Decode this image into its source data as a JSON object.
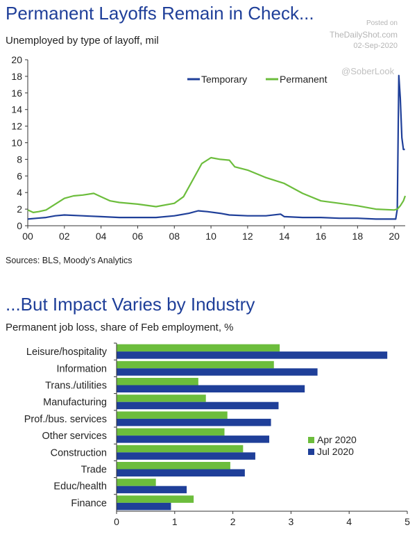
{
  "chart_data": [
    {
      "type": "line",
      "title": "Permanent Layoffs Remain in Check...",
      "subtitle": "Unemployed by type of layoff, mil",
      "source": "Sources: BLS, Moody’s Analytics",
      "watermark": {
        "posted": "Posted on",
        "site": "TheDailyShot.com",
        "date": "02-Sep-2020",
        "handle": "@SoberLook"
      },
      "y_ticks": [
        "0",
        "2",
        "4",
        "6",
        "8",
        "10",
        "12",
        "14",
        "16",
        "18",
        "20"
      ],
      "x_ticks": [
        "00",
        "02",
        "04",
        "06",
        "08",
        "10",
        "12",
        "14",
        "16",
        "18",
        "20"
      ],
      "ylim": [
        0,
        20
      ],
      "xlim": [
        2000,
        2020.6
      ],
      "grid": false,
      "legend_position": "top-right",
      "series": [
        {
          "name": "Temporary",
          "color": "#1f3f99",
          "points": [
            [
              2000,
              0.8
            ],
            [
              2000.5,
              0.9
            ],
            [
              2001,
              1.0
            ],
            [
              2001.5,
              1.2
            ],
            [
              2002,
              1.3
            ],
            [
              2003,
              1.2
            ],
            [
              2004,
              1.1
            ],
            [
              2005,
              1.0
            ],
            [
              2006,
              1.0
            ],
            [
              2007,
              1.0
            ],
            [
              2008,
              1.2
            ],
            [
              2008.8,
              1.5
            ],
            [
              2009.3,
              1.8
            ],
            [
              2009.8,
              1.7
            ],
            [
              2010.5,
              1.5
            ],
            [
              2011,
              1.3
            ],
            [
              2012,
              1.2
            ],
            [
              2013,
              1.2
            ],
            [
              2013.8,
              1.4
            ],
            [
              2014,
              1.1
            ],
            [
              2015,
              1.0
            ],
            [
              2016,
              1.0
            ],
            [
              2017,
              0.9
            ],
            [
              2018,
              0.9
            ],
            [
              2019,
              0.8
            ],
            [
              2019.9,
              0.8
            ],
            [
              2020.08,
              0.8
            ],
            [
              2020.17,
              2.0
            ],
            [
              2020.25,
              18.1
            ],
            [
              2020.33,
              15.4
            ],
            [
              2020.42,
              10.6
            ],
            [
              2020.5,
              9.2
            ],
            [
              2020.58,
              9.2
            ]
          ]
        },
        {
          "name": "Permanent",
          "color": "#6cbd3c",
          "points": [
            [
              2000,
              1.9
            ],
            [
              2000.3,
              1.6
            ],
            [
              2000.6,
              1.7
            ],
            [
              2001,
              1.9
            ],
            [
              2001.5,
              2.6
            ],
            [
              2002,
              3.3
            ],
            [
              2002.5,
              3.6
            ],
            [
              2003,
              3.7
            ],
            [
              2003.6,
              3.9
            ],
            [
              2004,
              3.5
            ],
            [
              2004.5,
              3.0
            ],
            [
              2005,
              2.8
            ],
            [
              2006,
              2.6
            ],
            [
              2007,
              2.3
            ],
            [
              2008,
              2.7
            ],
            [
              2008.5,
              3.5
            ],
            [
              2009,
              5.5
            ],
            [
              2009.5,
              7.5
            ],
            [
              2010,
              8.2
            ],
            [
              2010.5,
              8.0
            ],
            [
              2011,
              7.9
            ],
            [
              2011.3,
              7.1
            ],
            [
              2012,
              6.7
            ],
            [
              2013,
              5.8
            ],
            [
              2014,
              5.1
            ],
            [
              2015,
              3.9
            ],
            [
              2016,
              3.0
            ],
            [
              2017,
              2.7
            ],
            [
              2018,
              2.4
            ],
            [
              2019,
              2.0
            ],
            [
              2020,
              1.9
            ],
            [
              2020.17,
              2.0
            ],
            [
              2020.33,
              2.4
            ],
            [
              2020.5,
              3.0
            ],
            [
              2020.6,
              3.6
            ]
          ]
        }
      ]
    },
    {
      "type": "bar",
      "orientation": "horizontal",
      "title": "...But Impact Varies by Industry",
      "subtitle": "Permanent job loss, share of Feb employment, %",
      "categories": [
        "Leisure/hospitality",
        "Information",
        "Trans./utilities",
        "Manufacturing",
        "Prof./bus. services",
        "Other services",
        "Construction",
        "Trade",
        "Educ/health",
        "Finance"
      ],
      "x_ticks": [
        "0",
        "1",
        "2",
        "3",
        "4",
        "5"
      ],
      "xlim": [
        0,
        5
      ],
      "grid": false,
      "legend_position": "right",
      "series": [
        {
          "name": "Apr 2020",
          "color": "#6cbd3c",
          "values": [
            2.8,
            2.7,
            1.4,
            1.53,
            1.9,
            1.85,
            2.17,
            1.95,
            0.67,
            1.32
          ]
        },
        {
          "name": "Jul 2020",
          "color": "#1f3f99",
          "values": [
            4.65,
            3.45,
            3.23,
            2.78,
            2.65,
            2.62,
            2.38,
            2.2,
            1.2,
            0.93
          ]
        }
      ]
    }
  ]
}
